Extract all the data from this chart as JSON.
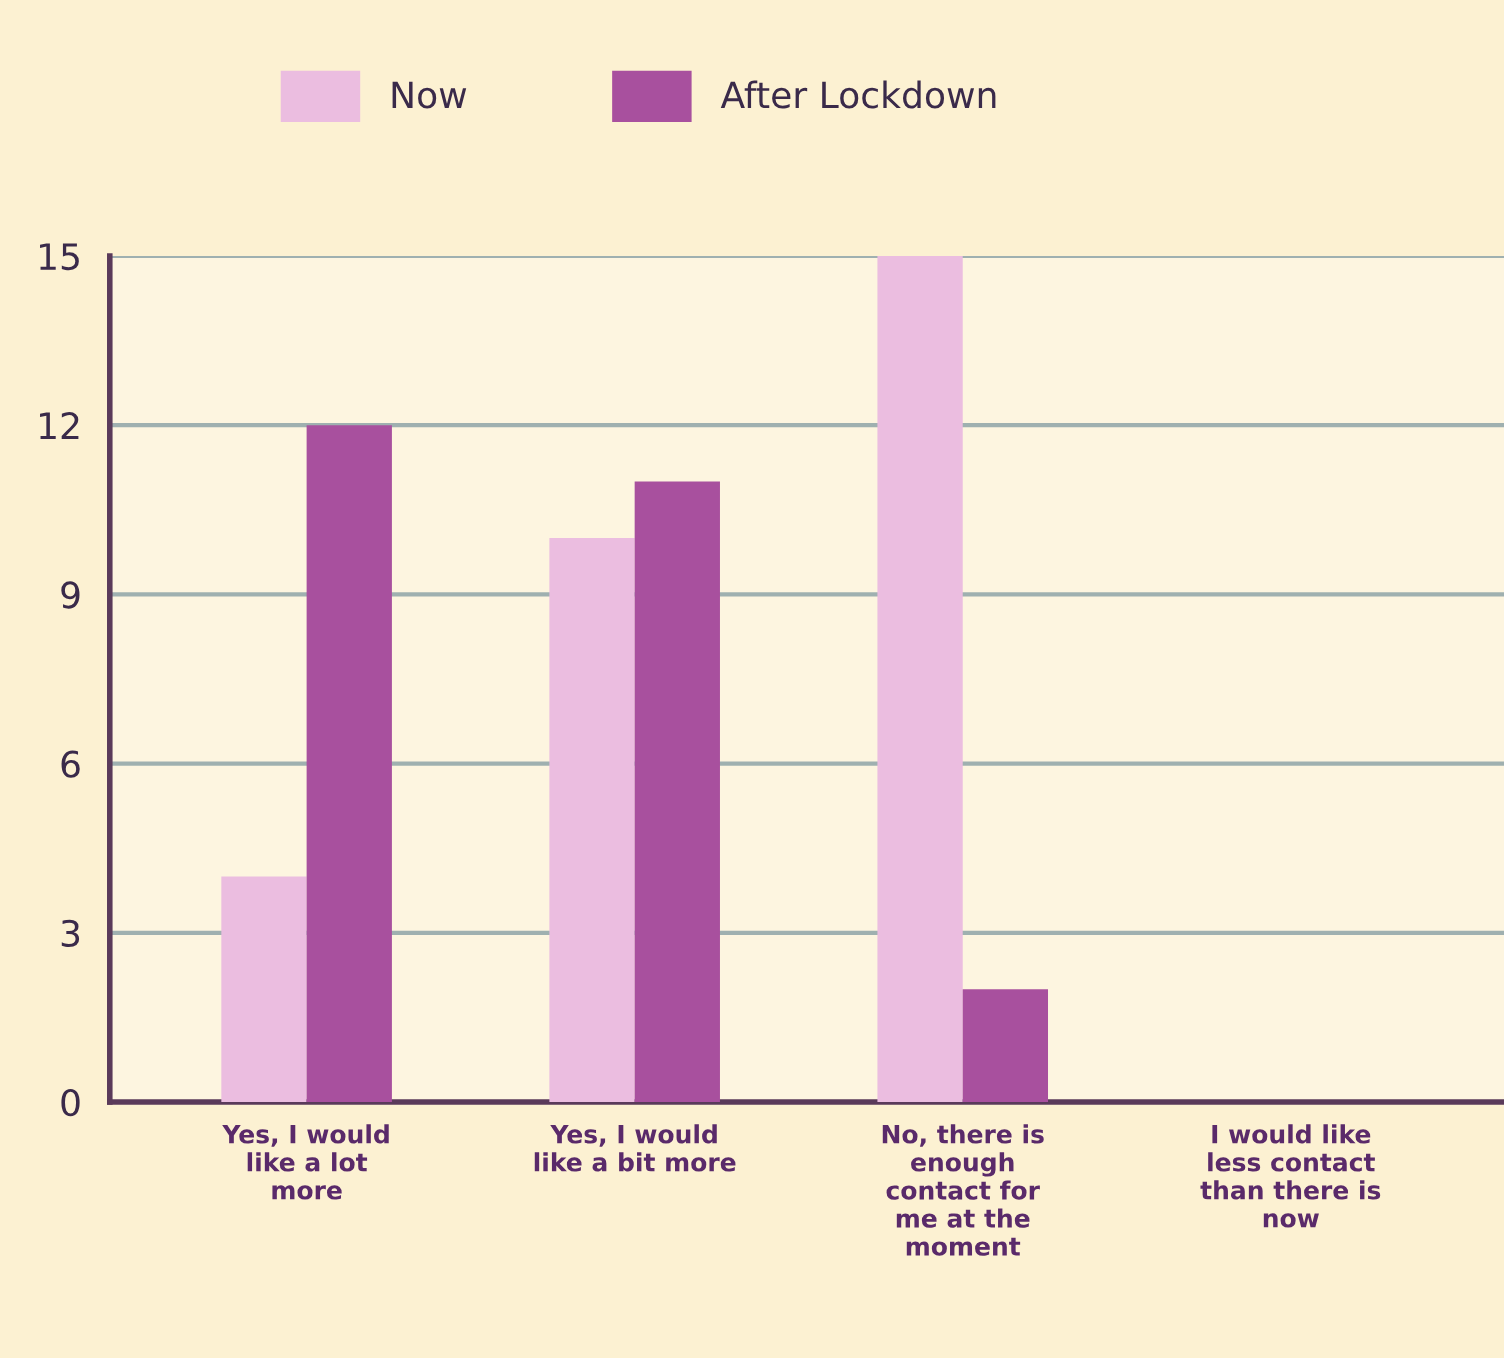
{
  "chart_data": {
    "type": "bar",
    "categories": [
      "Yes, I would\nlike a lot\nmore",
      "Yes, I would\nlike a bit more",
      "No, there is\nenough\ncontact for\nme at the\nmoment",
      "I would like\nless contact\nthan there is\nnow"
    ],
    "series": [
      {
        "name": "Now",
        "color": "#ebbde0",
        "values": [
          4,
          10,
          15,
          0
        ]
      },
      {
        "name": "After Lockdown",
        "color": "#a8509e",
        "values": [
          12,
          11,
          2,
          0
        ]
      }
    ],
    "ylim": [
      0,
      15
    ],
    "yticks": [
      0,
      3,
      6,
      9,
      12,
      15
    ],
    "grid": "y",
    "legend": "top"
  }
}
